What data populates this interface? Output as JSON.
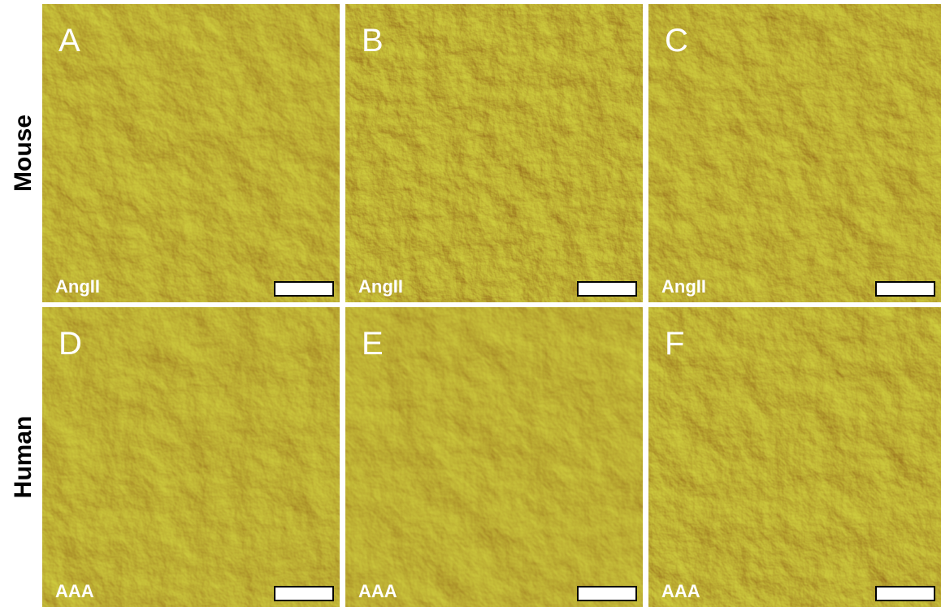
{
  "rows": [
    {
      "label": "Mouse",
      "panels": [
        {
          "letter": "A",
          "label": "AngII"
        },
        {
          "letter": "B",
          "label": "AngII"
        },
        {
          "letter": "C",
          "label": "AngII"
        }
      ]
    },
    {
      "label": "Human",
      "panels": [
        {
          "letter": "D",
          "label": "AAA"
        },
        {
          "letter": "E",
          "label": "AAA"
        },
        {
          "letter": "F",
          "label": "AAA"
        }
      ]
    }
  ]
}
